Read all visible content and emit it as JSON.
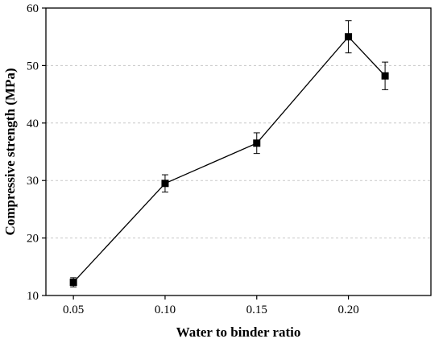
{
  "chart_data": {
    "type": "line",
    "xlabel": "Water to binder ratio",
    "ylabel": "Compressive strength (MPa)",
    "xlim": [
      0.035,
      0.245
    ],
    "ylim": [
      10,
      60
    ],
    "x_ticks": [
      0.05,
      0.1,
      0.15,
      0.2
    ],
    "x_tick_labels": [
      "0.05",
      "0.10",
      "0.15",
      "0.20"
    ],
    "y_ticks": [
      10,
      20,
      30,
      40,
      50,
      60
    ],
    "y_tick_labels": [
      "10",
      "20",
      "30",
      "40",
      "50",
      "60"
    ],
    "grid": "horizontal dashed",
    "series": [
      {
        "x": [
          0.05,
          0.1,
          0.15,
          0.2,
          0.22
        ],
        "y": [
          12.3,
          29.5,
          36.5,
          55.0,
          48.2
        ],
        "error": [
          0.8,
          1.5,
          1.8,
          2.8,
          2.4
        ],
        "marker": "square",
        "color": "#000000"
      }
    ]
  }
}
